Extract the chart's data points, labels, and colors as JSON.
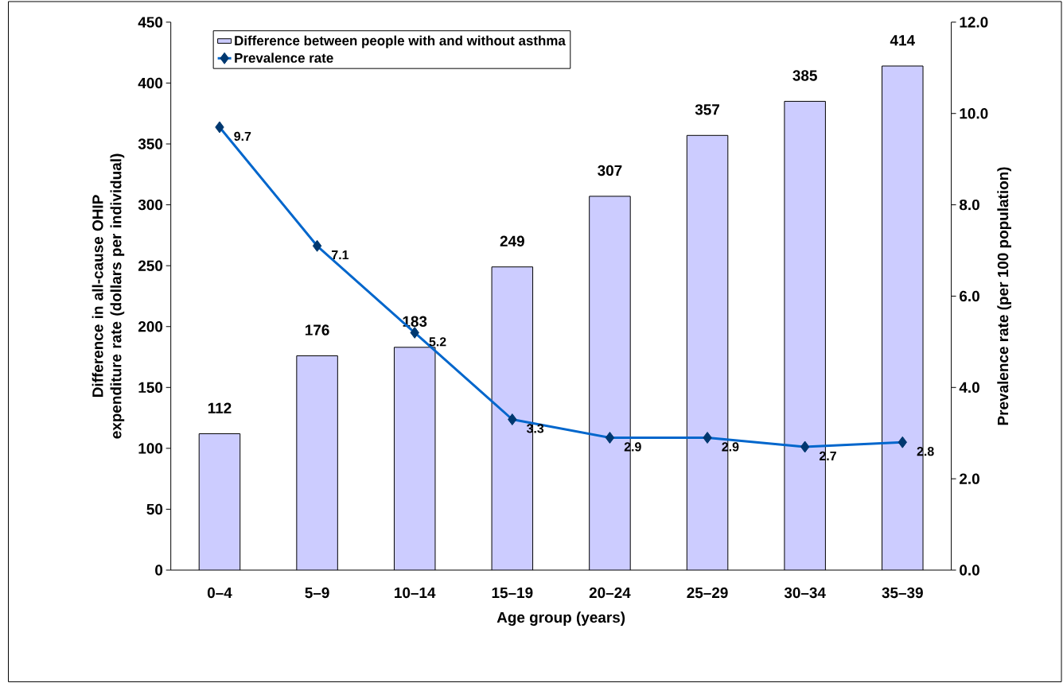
{
  "chart_data": {
    "type": "bar",
    "xlabel": "Age group (years)",
    "ylabel": "Difference in all-cause OHIP expenditure rate (dollars per individual)",
    "y2label": "Prevalence rate (per 100 population)",
    "categories": [
      "0–4",
      "5–9",
      "10–14",
      "15–19",
      "20–24",
      "25–29",
      "30–34",
      "35–39"
    ],
    "series": [
      {
        "name": "Difference between people with and without asthma",
        "color": "#ccccff",
        "values": [
          112,
          176,
          183,
          249,
          307,
          357,
          385,
          414
        ]
      },
      {
        "name": "Prevalence rate",
        "type": "line",
        "axis": "y2",
        "color": "#0066cc",
        "marker": "diamond",
        "values": [
          9.7,
          7.1,
          5.2,
          3.3,
          2.9,
          2.9,
          2.7,
          2.8
        ]
      }
    ],
    "ylim": [
      0,
      450
    ],
    "yticks": [
      0,
      50,
      100,
      150,
      200,
      250,
      300,
      350,
      400,
      450
    ],
    "y2lim": [
      0,
      12
    ],
    "y2ticks": [
      {
        "value": 0,
        "label": "0.0"
      },
      {
        "value": 2,
        "label": "2.0"
      },
      {
        "value": 4,
        "label": "4.0"
      },
      {
        "value": 6,
        "label": "6.0"
      },
      {
        "value": 8,
        "label": "8.0"
      },
      {
        "value": 10,
        "label": "10.0"
      },
      {
        "value": 12,
        "label": "12.0"
      }
    ],
    "data_labels": true,
    "legend": "top",
    "grid": false
  }
}
